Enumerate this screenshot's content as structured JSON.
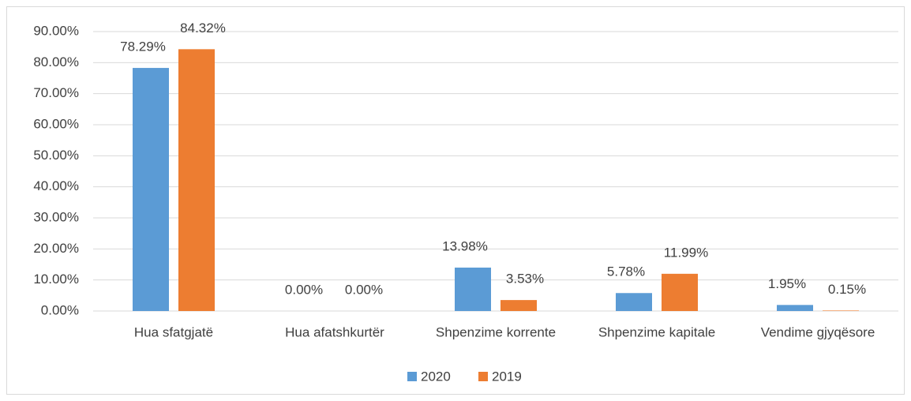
{
  "chart_data": {
    "type": "bar",
    "categories": [
      "Hua sfatgjatë",
      "Hua afatshkurtër",
      "Shpenzime korrente",
      "Shpenzime kapitale",
      "Vendime gjyqësore"
    ],
    "series": [
      {
        "name": "2020",
        "color": "#5b9bd5",
        "values": [
          78.29,
          0,
          13.98,
          5.78,
          1.95
        ],
        "value_labels": [
          "78.29%",
          "0.00%",
          "13.98%",
          "5.78%",
          "1.95%"
        ]
      },
      {
        "name": "2019",
        "color": "#ed7d31",
        "values": [
          84.32,
          0,
          3.53,
          11.99,
          0.15
        ],
        "value_labels": [
          "84.32%",
          "0.00%",
          "3.53%",
          "11.99%",
          "0.15%"
        ]
      }
    ],
    "ylim": [
      0,
      90
    ],
    "yticks": [
      {
        "value": 0,
        "label": "0.00%"
      },
      {
        "value": 10,
        "label": "10.00%"
      },
      {
        "value": 20,
        "label": "20.00%"
      },
      {
        "value": 30,
        "label": "30.00%"
      },
      {
        "value": 40,
        "label": "40.00%"
      },
      {
        "value": 50,
        "label": "50.00%"
      },
      {
        "value": 60,
        "label": "60.00%"
      },
      {
        "value": 70,
        "label": "70.00%"
      },
      {
        "value": 80,
        "label": "80.00%"
      },
      {
        "value": 90,
        "label": "90.00%"
      }
    ],
    "grid": true,
    "legend": "bottom"
  }
}
